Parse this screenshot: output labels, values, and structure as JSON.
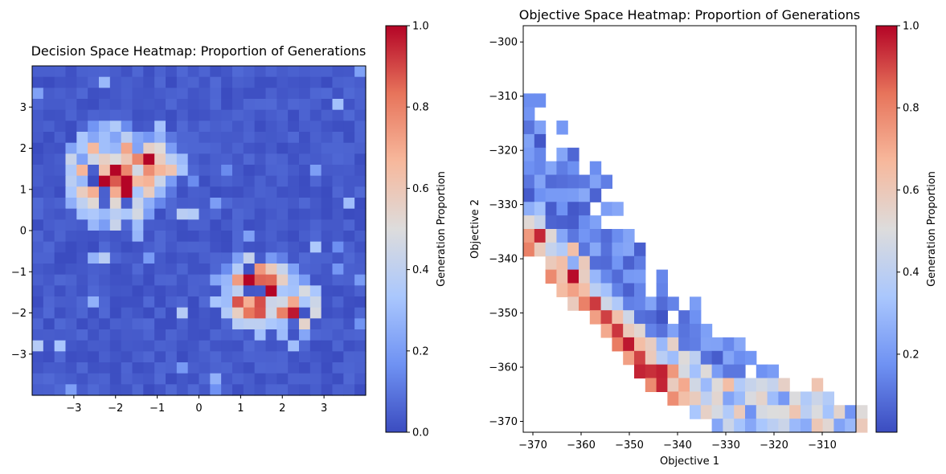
{
  "figure": {
    "colormap": "coolwarm",
    "colormap_stops": [
      "#3b4cc0",
      "#6f92f3",
      "#aac7fd",
      "#dddcdc",
      "#f7b89c",
      "#e7745b",
      "#b40426"
    ]
  },
  "chart_data": [
    {
      "type": "heatmap",
      "title": "Decision Space Heatmap: Proportion of Generations",
      "xlabel": "",
      "ylabel": "",
      "xlim": [
        -4,
        4
      ],
      "ylim": [
        -4,
        4
      ],
      "x_ticks": [
        -3,
        -2,
        -1,
        0,
        1,
        2,
        3
      ],
      "y_ticks": [
        -3,
        -2,
        -1,
        0,
        1,
        2,
        3
      ],
      "x_tick_labels": [
        "−3",
        "−2",
        "−1",
        "0",
        "1",
        "2",
        "3"
      ],
      "y_tick_labels": [
        "−3",
        "−2",
        "−1",
        "0",
        "1",
        "2",
        "3"
      ],
      "bins": 30,
      "grid": false,
      "colorbar": {
        "label": "Generation Proportion",
        "range": [
          0,
          1
        ],
        "ticks": [
          0.0,
          0.2,
          0.4,
          0.6,
          0.8,
          1.0
        ],
        "tick_labels": [
          "0.0",
          "0.2",
          "0.4",
          "0.6",
          "0.8",
          "1.0"
        ]
      },
      "hotspots": [
        {
          "x": -2.0,
          "y": 1.3,
          "spread": 0.9,
          "peak": 0.95
        },
        {
          "x": -1.2,
          "y": 1.6,
          "spread": 0.6,
          "peak": 0.8
        },
        {
          "x": 1.4,
          "y": -1.5,
          "spread": 0.7,
          "peak": 0.95
        },
        {
          "x": 2.3,
          "y": -1.9,
          "spread": 0.5,
          "peak": 0.8
        }
      ],
      "background": 0.05
    },
    {
      "type": "heatmap",
      "title": "Objective Space Heatmap: Proportion of Generations",
      "xlabel": "Objective 1",
      "ylabel": "Objective 2",
      "xlim": [
        -372,
        -303
      ],
      "ylim": [
        -372,
        -297
      ],
      "x_ticks": [
        -370,
        -360,
        -350,
        -340,
        -330,
        -320,
        -310
      ],
      "y_ticks": [
        -370,
        -360,
        -350,
        -340,
        -330,
        -320,
        -310,
        -300
      ],
      "x_tick_labels": [
        "−370",
        "−360",
        "−350",
        "−340",
        "−330",
        "−320",
        "−310"
      ],
      "y_tick_labels": [
        "−370",
        "−360",
        "−350",
        "−340",
        "−330",
        "−320",
        "−310",
        "−300"
      ],
      "bins": 28,
      "grid": false,
      "colorbar": {
        "label": "Generation Proportion",
        "range": [
          0.01,
          1
        ],
        "ticks": [
          0.2,
          0.4,
          0.6,
          0.8,
          1.0
        ],
        "tick_labels": [
          "0.2",
          "0.4",
          "0.6",
          "0.8",
          "1.0"
        ]
      },
      "front": [
        [
          -368,
          -338
        ],
        [
          -366,
          -344
        ],
        [
          -360,
          -348
        ],
        [
          -355,
          -352
        ],
        [
          -350,
          -359
        ],
        [
          -345,
          -363
        ],
        [
          -340,
          -365
        ],
        [
          -335,
          -368
        ],
        [
          -332,
          -370
        ]
      ],
      "empty_region": "upper-right"
    }
  ]
}
